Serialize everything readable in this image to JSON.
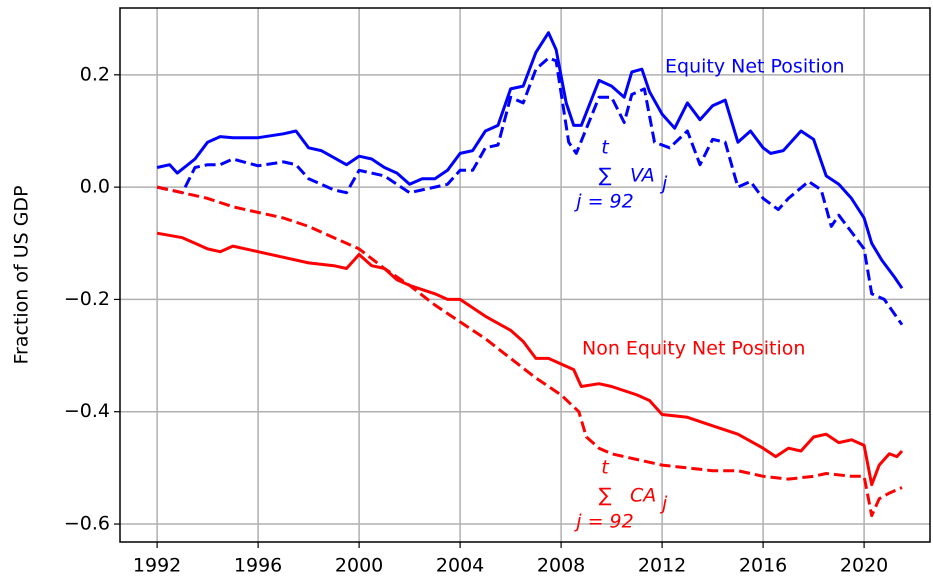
{
  "chart_data": {
    "type": "line",
    "y_label": "Fraction of US GDP",
    "xlim": [
      1990.53,
      2022.61
    ],
    "ylim": [
      -0.632,
      0.319
    ],
    "xticks": [
      1992,
      1996,
      2000,
      2004,
      2008,
      2012,
      2016,
      2020
    ],
    "yticks": [
      {
        "value": -0.6,
        "label": "−0.6"
      },
      {
        "value": -0.4,
        "label": "−0.4"
      },
      {
        "value": -0.2,
        "label": "−0.2"
      },
      {
        "value": 0,
        "label": "0.0"
      },
      0.2
    ],
    "grid": true,
    "series": [
      {
        "color": "#0000ff",
        "style": "solid",
        "x": [
          1992,
          1992.5,
          1992.8,
          1993.5,
          1994,
          1994.5,
          1995,
          1996,
          1997,
          1997.5,
          1998,
          1998.5,
          1999.5,
          2000,
          2000.5,
          2001,
          2001.5,
          2002,
          2002.5,
          2003,
          2003.5,
          2004,
          2004.5,
          2005,
          2005.5,
          2006,
          2006.5,
          2007,
          2007.5,
          2007.8,
          2008.2,
          2008.5,
          2008.8,
          2009.5,
          2010,
          2010.5,
          2010.8,
          2011.2,
          2011.5,
          2012,
          2012.5,
          2013,
          2013.5,
          2014,
          2014.5,
          2015,
          2015.5,
          2016,
          2016.3,
          2016.8,
          2017.5,
          2018,
          2018.5,
          2019,
          2019.5,
          2020,
          2020.3,
          2020.7,
          2021.2,
          2021.5
        ],
        "values": [
          0.035,
          0.04,
          0.025,
          0.05,
          0.08,
          0.09,
          0.088,
          0.088,
          0.095,
          0.1,
          0.07,
          0.065,
          0.04,
          0.055,
          0.05,
          0.035,
          0.025,
          0.005,
          0.015,
          0.015,
          0.03,
          0.06,
          0.065,
          0.1,
          0.11,
          0.175,
          0.18,
          0.24,
          0.275,
          0.245,
          0.15,
          0.11,
          0.11,
          0.19,
          0.18,
          0.16,
          0.205,
          0.21,
          0.17,
          0.13,
          0.105,
          0.15,
          0.12,
          0.145,
          0.155,
          0.08,
          0.1,
          0.07,
          0.06,
          0.065,
          0.1,
          0.085,
          0.02,
          0.005,
          -0.02,
          -0.055,
          -0.1,
          -0.13,
          -0.16,
          -0.18
        ]
      },
      {
        "color": "#0000ff",
        "style": "dashed",
        "x": [
          1992,
          1992.5,
          1993,
          1993.5,
          1994,
          1994.5,
          1995,
          1996,
          1997,
          1997.5,
          1998,
          1999,
          1999.5,
          2000,
          2001,
          2002,
          2002.5,
          2003,
          2003.5,
          2004,
          2004.5,
          2005,
          2005.5,
          2006,
          2006.5,
          2007,
          2007.5,
          2007.8,
          2008.3,
          2008.6,
          2009.5,
          2010,
          2010.5,
          2010.8,
          2011.3,
          2011.7,
          2012.3,
          2013,
          2013.5,
          2014,
          2014.5,
          2015,
          2015.5,
          2016,
          2016.3,
          2016.6,
          2017,
          2017.8,
          2018.3,
          2018.7,
          2019,
          2019.5,
          2020,
          2020.3,
          2020.8,
          2021.5
        ],
        "values": [
          0.0,
          -0.005,
          -0.01,
          0.035,
          0.04,
          0.04,
          0.05,
          0.038,
          0.045,
          0.04,
          0.015,
          -0.005,
          -0.01,
          0.03,
          0.02,
          -0.01,
          -0.005,
          0.0,
          0.005,
          0.03,
          0.03,
          0.07,
          0.075,
          0.16,
          0.15,
          0.21,
          0.23,
          0.225,
          0.08,
          0.06,
          0.16,
          0.16,
          0.115,
          0.165,
          0.175,
          0.08,
          0.07,
          0.1,
          0.04,
          0.085,
          0.08,
          0.0,
          0.01,
          -0.02,
          -0.03,
          -0.04,
          -0.02,
          0.01,
          -0.005,
          -0.07,
          -0.05,
          -0.08,
          -0.11,
          -0.19,
          -0.2,
          -0.245
        ]
      },
      {
        "color": "#ff0000",
        "style": "solid",
        "x": [
          1992,
          1993,
          1993.5,
          1994,
          1994.5,
          1995,
          1996,
          1997,
          1998,
          1999,
          1999.5,
          2000,
          2000.5,
          2001,
          2001.5,
          2002,
          2003,
          2003.5,
          2004,
          2005,
          2006,
          2006.5,
          2007,
          2007.5,
          2008,
          2008.5,
          2008.8,
          2009.5,
          2010,
          2011,
          2011.5,
          2012,
          2013,
          2014,
          2015,
          2016,
          2016.5,
          2017,
          2017.5,
          2018,
          2018.5,
          2019,
          2019.5,
          2020,
          2020.3,
          2020.6,
          2021,
          2021.3,
          2021.5
        ],
        "values": [
          -0.082,
          -0.09,
          -0.1,
          -0.11,
          -0.115,
          -0.105,
          -0.115,
          -0.125,
          -0.135,
          -0.14,
          -0.145,
          -0.12,
          -0.14,
          -0.145,
          -0.165,
          -0.175,
          -0.19,
          -0.2,
          -0.2,
          -0.23,
          -0.255,
          -0.275,
          -0.305,
          -0.305,
          -0.315,
          -0.325,
          -0.355,
          -0.35,
          -0.355,
          -0.37,
          -0.38,
          -0.405,
          -0.41,
          -0.425,
          -0.44,
          -0.465,
          -0.48,
          -0.465,
          -0.47,
          -0.445,
          -0.44,
          -0.455,
          -0.45,
          -0.46,
          -0.53,
          -0.495,
          -0.475,
          -0.48,
          -0.47
        ]
      },
      {
        "color": "#ff0000",
        "style": "dashed",
        "x": [
          1992,
          1993,
          1994,
          1995,
          1996,
          1997,
          1998,
          1999,
          2000,
          2001,
          2002,
          2003,
          2004,
          2005,
          2006,
          2007,
          2008,
          2008.7,
          2009,
          2009.5,
          2010,
          2011,
          2012,
          2013,
          2014,
          2015,
          2016,
          2017,
          2018,
          2018.5,
          2019.5,
          2020,
          2020.3,
          2020.6,
          2021,
          2021.5
        ],
        "values": [
          0.0,
          -0.01,
          -0.02,
          -0.035,
          -0.045,
          -0.055,
          -0.07,
          -0.09,
          -0.11,
          -0.145,
          -0.175,
          -0.21,
          -0.24,
          -0.27,
          -0.305,
          -0.34,
          -0.37,
          -0.4,
          -0.445,
          -0.465,
          -0.475,
          -0.485,
          -0.495,
          -0.5,
          -0.505,
          -0.505,
          -0.515,
          -0.52,
          -0.515,
          -0.51,
          -0.515,
          -0.515,
          -0.585,
          -0.555,
          -0.545,
          -0.535
        ]
      }
    ],
    "annotations": [
      {
        "text": "Equity Net Position",
        "color": "#0000ff"
      },
      {
        "text": "Non Equity Net Position",
        "color": "#ff0000"
      }
    ],
    "sum_labels": [
      {
        "upper": "t",
        "symbol": "∑",
        "term": "VA",
        "index": "j",
        "lower": "j = 92",
        "color": "#0000ff"
      },
      {
        "upper": "t",
        "symbol": "∑",
        "term": "CA",
        "index": "j",
        "lower": "j = 92",
        "color": "#ff0000"
      }
    ]
  }
}
